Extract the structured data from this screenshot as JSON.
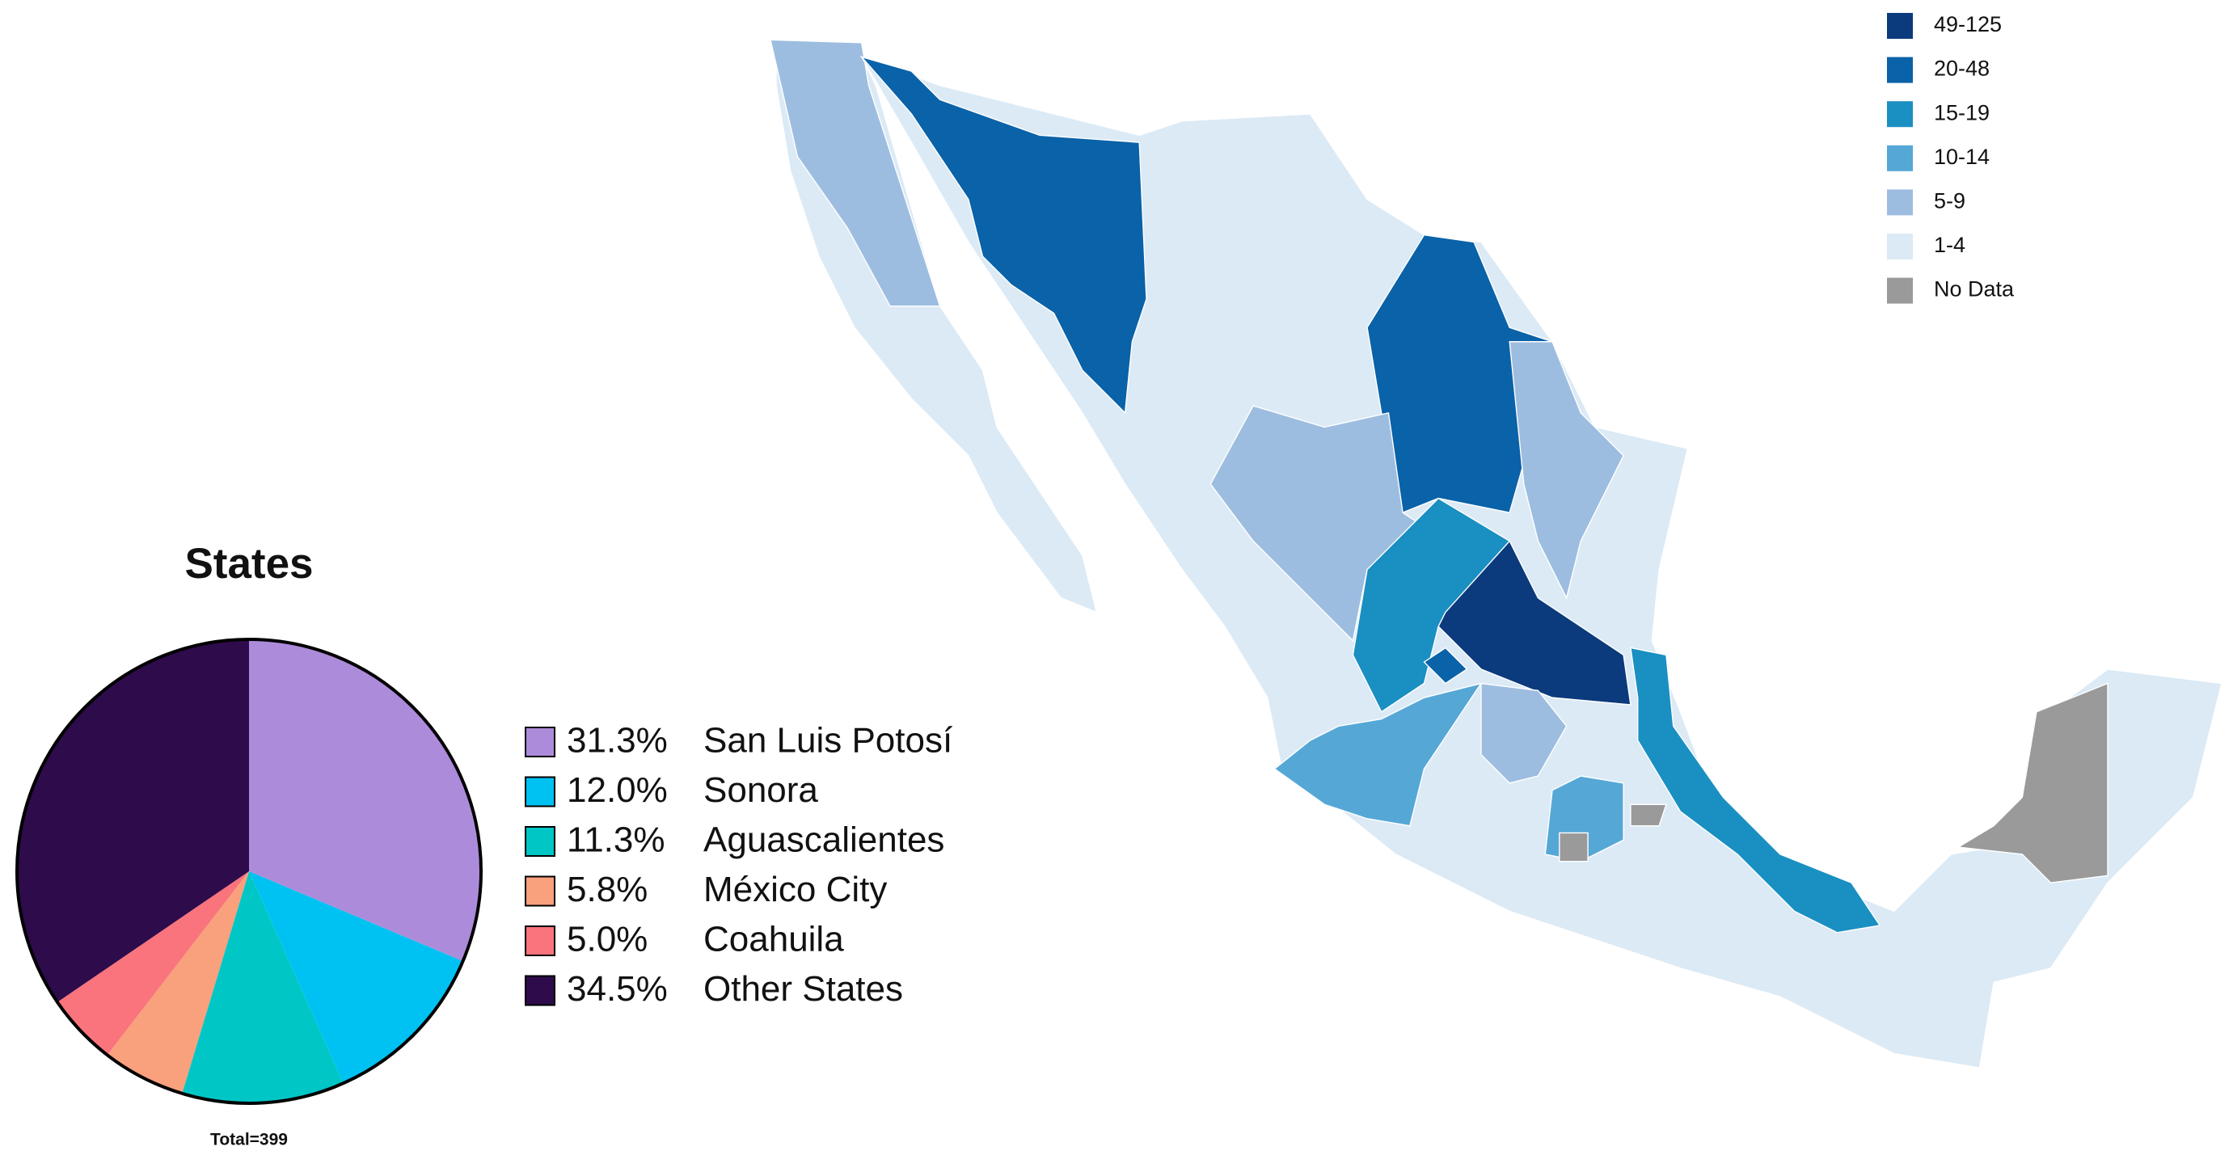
{
  "chart_data": [
    {
      "type": "pie",
      "title": "States",
      "note": "Total=399",
      "categories": [
        "San Luis Potosí",
        "Sonora",
        "Aguascalientes",
        "México City",
        "Coahuila",
        "Other States"
      ],
      "values": [
        31.3,
        12.0,
        11.3,
        5.8,
        5.0,
        34.5
      ],
      "value_labels": [
        "31.3%",
        "12.0%",
        "11.3%",
        "5.8%",
        "5.0%",
        "34.5%"
      ],
      "colors": [
        "#ad8bdb",
        "#00c2f2",
        "#00c6c6",
        "#f9a07d",
        "#f9747c",
        "#2e0b4b"
      ]
    },
    {
      "type": "map",
      "legend": [
        {
          "label": "49-125",
          "color": "#0b3a7d"
        },
        {
          "label": "20-48",
          "color": "#0a62a8"
        },
        {
          "label": "15-19",
          "color": "#1a8fc2"
        },
        {
          "label": "10-14",
          "color": "#55a8d6"
        },
        {
          "label": "5-9",
          "color": "#9dbde0"
        },
        {
          "label": "1-4",
          "color": "#dbeaf5"
        },
        {
          "label": "No Data",
          "color": "#9a9a9a"
        }
      ]
    }
  ]
}
